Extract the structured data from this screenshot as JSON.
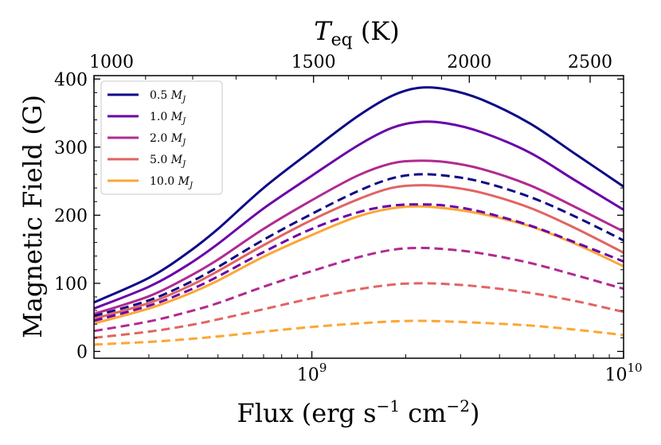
{
  "chart_data": {
    "type": "line",
    "title": "",
    "xlabel": "Flux (erg s⁻¹ cm⁻²)",
    "ylabel": "Magnetic Field (G)",
    "top_xlabel": "Teq (K)",
    "x_scale": "log",
    "xlim": [
      200000000,
      10000000000
    ],
    "ylim": [
      -10,
      405
    ],
    "grid": false,
    "legend_position": "top-left",
    "y_ticks": [
      {
        "value": 0,
        "label": "0"
      },
      {
        "value": 100,
        "label": "100"
      },
      {
        "value": 200,
        "label": "200"
      },
      {
        "value": 300,
        "label": "300"
      },
      {
        "value": 400,
        "label": "400"
      }
    ],
    "x_ticks": [
      {
        "value": 1000000000,
        "base": "10",
        "exp": "9"
      },
      {
        "value": 10000000000,
        "base": "10",
        "exp": "10"
      }
    ],
    "top_ticks": [
      {
        "value": 1000,
        "label": "1000"
      },
      {
        "value": 1500,
        "label": "1500"
      },
      {
        "value": 2000,
        "label": "2000"
      },
      {
        "value": 2500,
        "label": "2500"
      }
    ],
    "x": [
      200000000,
      300000000,
      400000000,
      500000000,
      700000000,
      1000000000,
      1400000000,
      1800000000,
      2200000000,
      2700000000,
      3500000000,
      5000000000,
      7000000000,
      10000000000
    ],
    "series": [
      {
        "name": "0.5 M_J",
        "color": "#0d0887",
        "style": "solid",
        "values": [
          72,
          108,
          145,
          180,
          240,
          295,
          345,
          375,
          387,
          385,
          370,
          335,
          290,
          242
        ]
      },
      {
        "name": "1.0 M_J",
        "color": "#6a00a8",
        "style": "solid",
        "values": [
          63,
          95,
          127,
          158,
          210,
          258,
          302,
          328,
          337,
          335,
          322,
          292,
          251,
          208
        ]
      },
      {
        "name": "2.0 M_J",
        "color": "#b12a90",
        "style": "solid",
        "values": [
          55,
          81,
          109,
          135,
          180,
          222,
          258,
          276,
          280,
          278,
          268,
          244,
          212,
          176
        ]
      },
      {
        "name": "5.0 M_J",
        "color": "#e16462",
        "style": "solid",
        "values": [
          48,
          71,
          95,
          118,
          156,
          193,
          223,
          240,
          244,
          242,
          233,
          211,
          181,
          145
        ]
      },
      {
        "name": "10.0 M_J",
        "color": "#fca636",
        "style": "solid",
        "values": [
          41,
          63,
          84,
          104,
          139,
          171,
          198,
          210,
          213,
          210,
          202,
          184,
          158,
          125
        ]
      },
      {
        "color": "#0d0887",
        "style": "dashed",
        "values": [
          52,
          75,
          100,
          124,
          164,
          202,
          235,
          254,
          260,
          258,
          249,
          227,
          198,
          163
        ]
      },
      {
        "color": "#6a00a8",
        "style": "dashed",
        "values": [
          45,
          67,
          89,
          110,
          146,
          180,
          204,
          214,
          216,
          214,
          205,
          185,
          160,
          132
        ]
      },
      {
        "color": "#b12a90",
        "style": "dashed",
        "values": [
          30,
          44,
          58,
          71,
          95,
          118,
          138,
          149,
          152,
          150,
          144,
          130,
          112,
          92
        ]
      },
      {
        "color": "#e16462",
        "style": "dashed",
        "values": [
          20,
          29,
          38,
          47,
          62,
          78,
          91,
          98,
          100,
          99,
          95,
          86,
          74,
          58
        ]
      },
      {
        "color": "#fca636",
        "style": "dashed",
        "values": [
          10,
          14,
          18,
          22,
          29,
          36,
          41,
          44,
          45,
          44,
          42,
          38,
          32,
          24
        ]
      }
    ]
  }
}
